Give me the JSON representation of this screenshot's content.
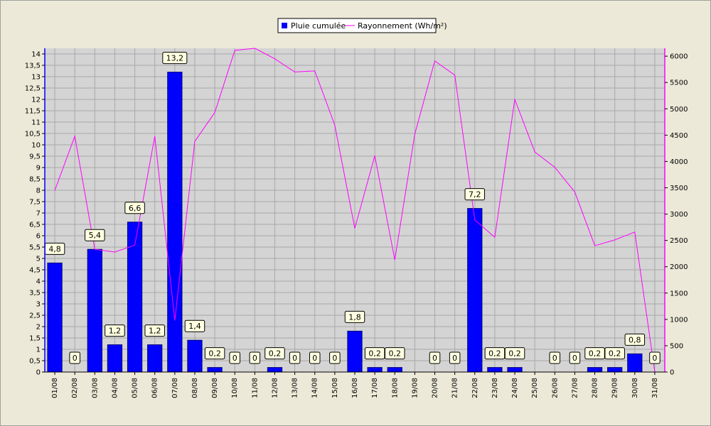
{
  "chart_data": {
    "type": "bar",
    "categories": [
      "01/08",
      "02/08",
      "03/08",
      "04/08",
      "05/08",
      "06/08",
      "07/08",
      "08/08",
      "09/08",
      "10/08",
      "11/08",
      "12/08",
      "13/08",
      "14/08",
      "15/08",
      "16/08",
      "17/08",
      "18/08",
      "19/08",
      "20/08",
      "21/08",
      "22/08",
      "23/08",
      "24/08",
      "25/08",
      "26/08",
      "27/08",
      "28/08",
      "29/08",
      "30/08",
      "31/08"
    ],
    "series": [
      {
        "name": "Pluie cumulée",
        "kind": "bar",
        "axis": "left",
        "color": "#0000ff",
        "values": [
          4.8,
          0,
          5.4,
          1.2,
          6.6,
          1.2,
          13.2,
          1.4,
          0.2,
          0,
          0,
          0.2,
          0,
          0,
          0,
          1.8,
          0.2,
          0.2,
          null,
          0,
          0,
          7.2,
          0.2,
          0.2,
          null,
          0,
          0,
          0.2,
          0.2,
          0.8,
          0
        ],
        "labels": [
          "4,8",
          "0",
          "5,4",
          "1,2",
          "6,6",
          "1,2",
          "13,2",
          "1,4",
          "0,2",
          "0",
          "0",
          "0,2",
          "0",
          "0",
          "0",
          "1,8",
          "0,2",
          "0,2",
          "",
          "0",
          "0",
          "7,2",
          "0,2",
          "0,2",
          "",
          "0",
          "0",
          "0,2",
          "0,2",
          "0,8",
          "0"
        ]
      },
      {
        "name": "Rayonnement (Wh/m²)",
        "kind": "line",
        "axis": "right",
        "color": "#ff00ff",
        "values": [
          3450,
          4480,
          2330,
          2280,
          2410,
          4480,
          980,
          4380,
          4930,
          6110,
          6150,
          5950,
          5700,
          5720,
          4690,
          2730,
          4110,
          2130,
          4520,
          5910,
          5640,
          2890,
          2560,
          5180,
          4180,
          3890,
          3420,
          2400,
          2510,
          2660,
          0
        ]
      }
    ],
    "y_left": {
      "min": 0,
      "max": 14.25,
      "step": 0.5,
      "ticks": [
        "0",
        "0,5",
        "1",
        "1,5",
        "2",
        "2,5",
        "3",
        "3,5",
        "4",
        "4,5",
        "5",
        "5,5",
        "6",
        "6,5",
        "7",
        "7,5",
        "8",
        "8,5",
        "9",
        "9,5",
        "10",
        "10,5",
        "11",
        "11,5",
        "12",
        "12,5",
        "13",
        "13,5",
        "14"
      ]
    },
    "y_right": {
      "min": 0,
      "max": 6150,
      "step": 500,
      "ticks": [
        "0",
        "500",
        "1000",
        "1500",
        "2000",
        "2500",
        "3000",
        "3500",
        "4000",
        "4500",
        "5000",
        "5500",
        "6000"
      ]
    },
    "grid": true,
    "legend_position": "top-center"
  }
}
